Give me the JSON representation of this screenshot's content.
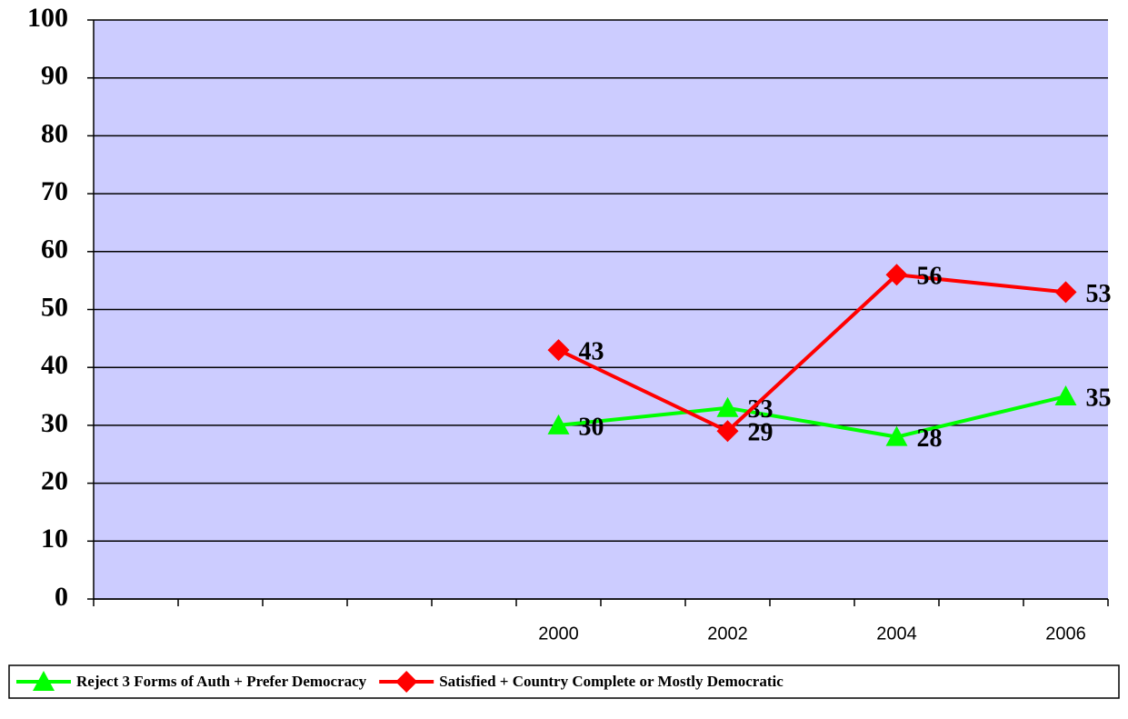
{
  "chart_data": {
    "type": "line",
    "categories": [
      null,
      null,
      null,
      null,
      null,
      "2000",
      null,
      "2002",
      null,
      "2004",
      null,
      "2006"
    ],
    "series": [
      {
        "name": "Reject 3 Forms of Auth + Prefer Democracy",
        "color": "#00ff00",
        "marker": "triangle",
        "values": [
          null,
          null,
          null,
          null,
          null,
          30,
          null,
          33,
          null,
          28,
          null,
          35
        ]
      },
      {
        "name": "Satisfied + Country Complete or Mostly Democratic",
        "color": "#ff0000",
        "marker": "diamond",
        "values": [
          null,
          null,
          null,
          null,
          null,
          43,
          null,
          29,
          null,
          56,
          null,
          53
        ]
      }
    ],
    "ylim": [
      0,
      100
    ],
    "yticks": [
      0,
      10,
      20,
      30,
      40,
      50,
      60,
      70,
      80,
      90,
      100
    ],
    "grid": true,
    "plot_background": "#ccccff",
    "legend": "bottom"
  }
}
